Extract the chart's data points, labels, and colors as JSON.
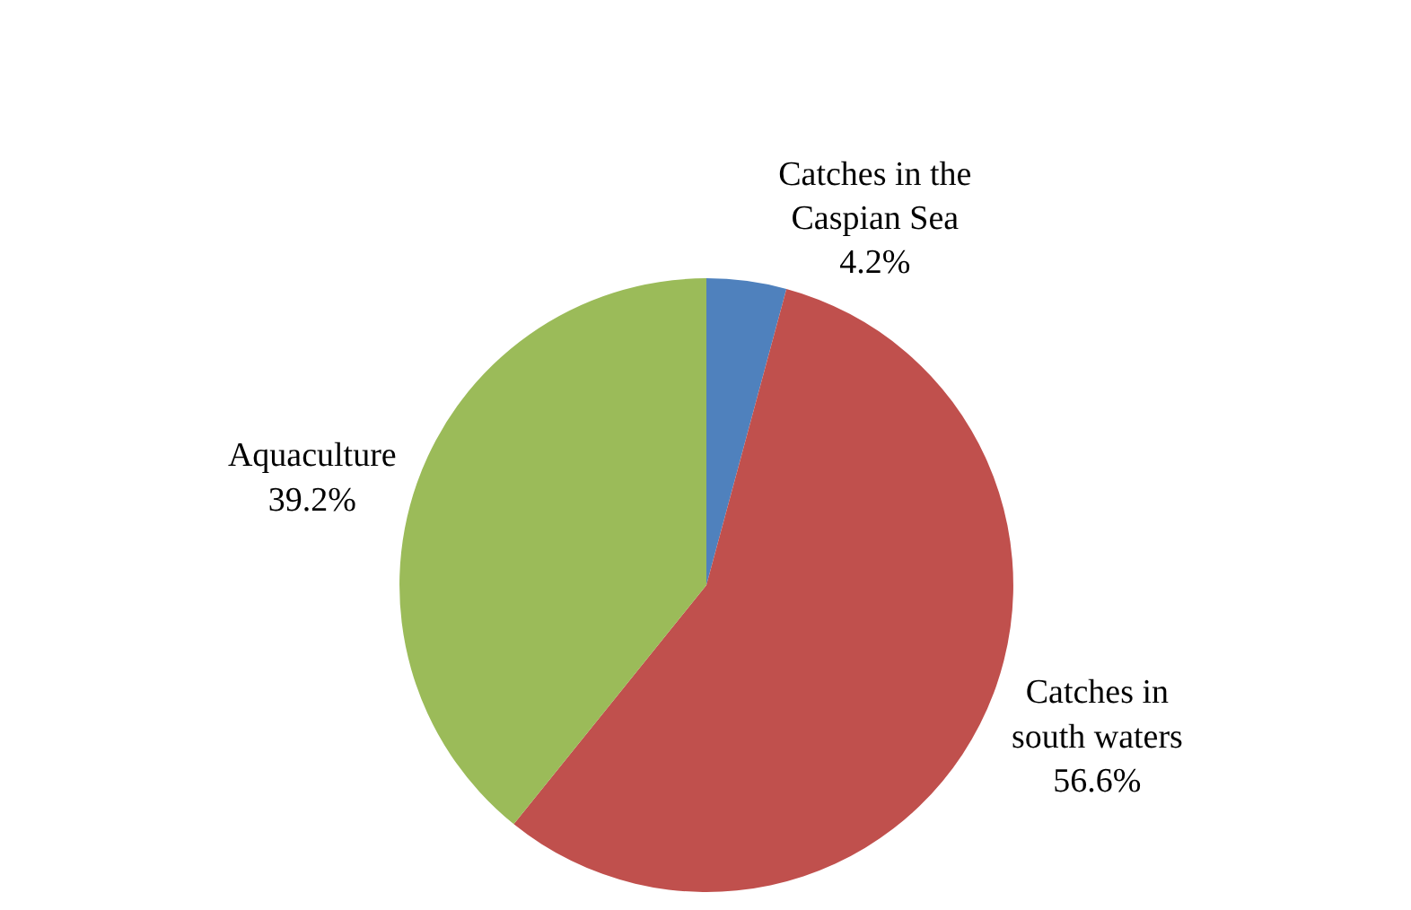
{
  "chart_data": {
    "type": "pie",
    "categories": [
      "Catches in the Caspian Sea",
      "Catches in south waters",
      "Aquaculture"
    ],
    "values": [
      4.2,
      56.6,
      39.2
    ],
    "value_labels": [
      "4.2%",
      "56.6%",
      "39.2%"
    ],
    "colors": [
      "#4f81bd",
      "#c0504d",
      "#9bbb59"
    ],
    "legend": false
  }
}
